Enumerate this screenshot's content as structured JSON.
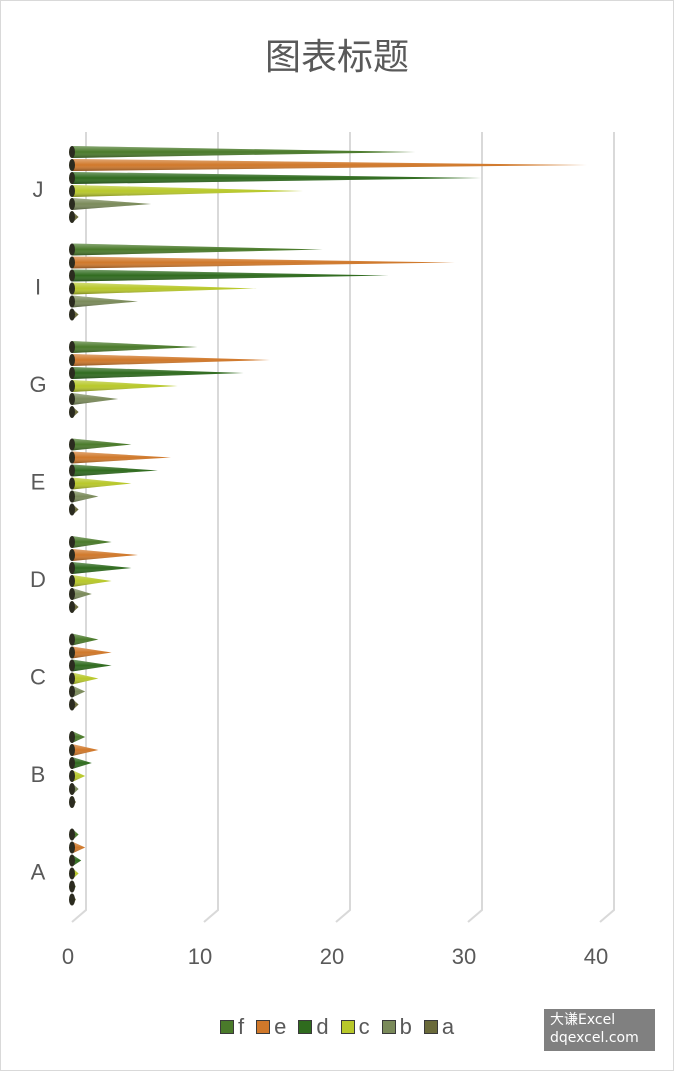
{
  "chart_data": {
    "type": "bar",
    "orientation": "horizontal",
    "title": "图表标题",
    "categories": [
      "A",
      "B",
      "C",
      "D",
      "E",
      "G",
      "I",
      "J"
    ],
    "series": [
      {
        "name": "f",
        "color": "#4a7a2a",
        "values": [
          0.5,
          1,
          2,
          3,
          4.5,
          9.5,
          19,
          26
        ]
      },
      {
        "name": "e",
        "color": "#d0782a",
        "values": [
          1,
          2,
          3,
          5,
          7.5,
          15,
          29,
          39
        ]
      },
      {
        "name": "d",
        "color": "#2f6b1e",
        "values": [
          0.7,
          1.5,
          3,
          4.5,
          6.5,
          13,
          24,
          31
        ]
      },
      {
        "name": "c",
        "color": "#b8c82a",
        "values": [
          0.5,
          1,
          2,
          3,
          4.5,
          8,
          14,
          17.5
        ]
      },
      {
        "name": "b",
        "color": "#7a8a5a",
        "values": [
          0.3,
          0.5,
          1,
          1.5,
          2,
          3.5,
          5,
          6
        ]
      },
      {
        "name": "a",
        "color": "#6a6a3a",
        "values": [
          0.3,
          0.3,
          0.5,
          0.5,
          0.5,
          0.5,
          0.5,
          0.5
        ]
      }
    ],
    "xlim": [
      0,
      40
    ],
    "xticks": [
      "0",
      "10",
      "20",
      "30",
      "40"
    ],
    "grid": true,
    "legend_position": "bottom",
    "legend_order": [
      "f",
      "e",
      "d",
      "c",
      "b",
      "a"
    ]
  },
  "watermark": {
    "line1": "大谦Excel",
    "line2": "dqexcel.com"
  }
}
